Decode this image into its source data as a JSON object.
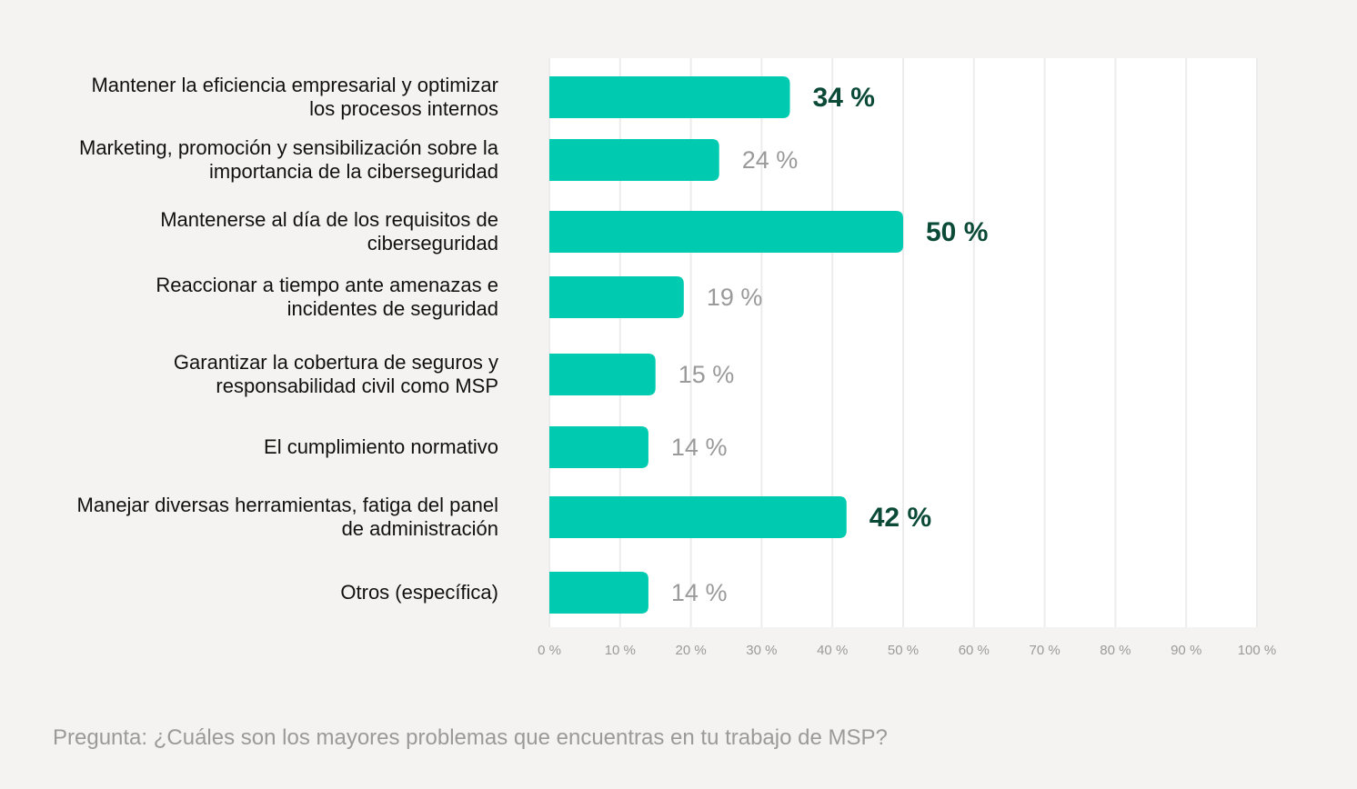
{
  "chart_data": {
    "type": "barh",
    "categories": [
      "Mantener la eficiencia empresarial y optimizar los procesos internos",
      "Marketing, promoción y sensibilización sobre la importancia de la ciberseguridad",
      "Mantenerse al día de los requisitos de ciberseguridad",
      "Reaccionar a tiempo ante amenazas e incidentes de seguridad",
      "Garantizar la cobertura de seguros y responsabilidad civil como MSP",
      "El cumplimiento normativo",
      "Manejar diversas herramientas, fatiga del panel de administración",
      "Otros (específica)"
    ],
    "values": [
      34,
      24,
      50,
      19,
      15,
      14,
      42,
      14
    ],
    "value_labels": [
      "34 %",
      "24 %",
      "50 %",
      "19 %",
      "15 %",
      "14 %",
      "42 %",
      "14 %"
    ],
    "value_label_colors": [
      "#0b4a37",
      "#9a9a9a",
      "#0b4a37",
      "#9a9a9a",
      "#9a9a9a",
      "#9a9a9a",
      "#0b4a37",
      "#9a9a9a"
    ],
    "color": "#00cbb0",
    "xlim": [
      0,
      100
    ],
    "xticks": [
      {
        "value": 0,
        "label": "0 %"
      },
      {
        "value": 10,
        "label": "10 %"
      },
      {
        "value": 20,
        "label": "20 %"
      },
      {
        "value": 30,
        "label": "30 %"
      },
      {
        "value": 40,
        "label": "40 %"
      },
      {
        "value": 50,
        "label": "50 %"
      },
      {
        "value": 60,
        "label": "60 %"
      },
      {
        "value": 70,
        "label": "70 %"
      },
      {
        "value": 80,
        "label": "80 %"
      },
      {
        "value": 90,
        "label": "90 %"
      },
      {
        "value": 100,
        "label": "100 %"
      }
    ],
    "grid": true,
    "caption": "Pregunta: ¿Cuáles son los mayores problemas que encuentras en tu trabajo de MSP?"
  }
}
